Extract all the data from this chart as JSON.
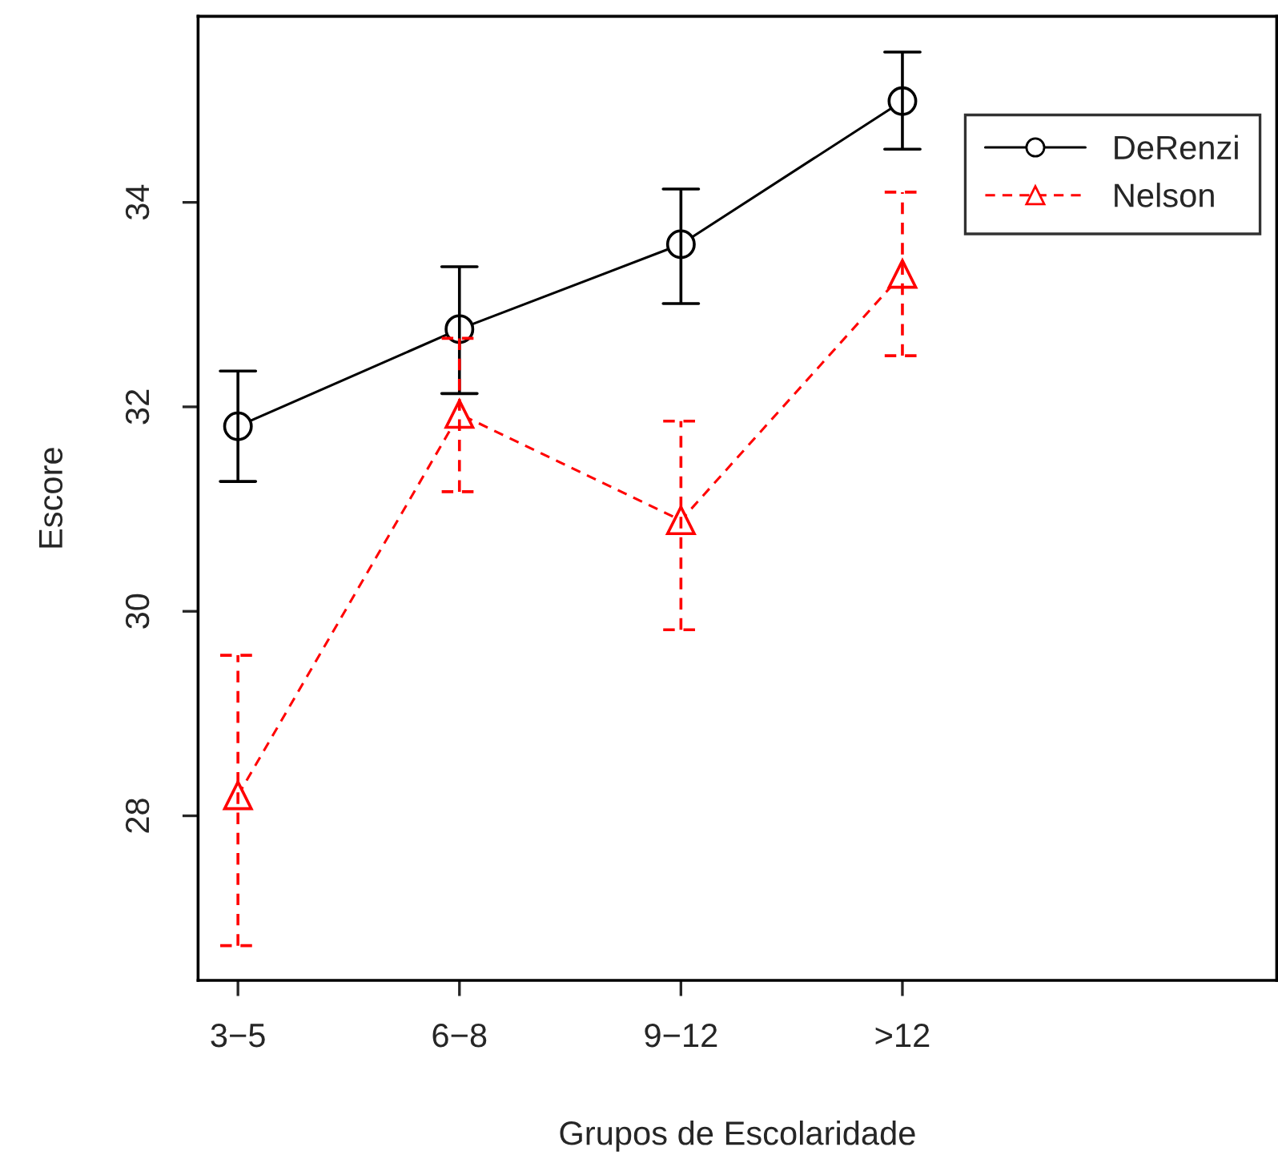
{
  "chart_data": {
    "type": "line",
    "xlabel": "Grupos de Escolaridade",
    "ylabel": "Escore",
    "categories": [
      "3−5",
      "6−8",
      "9−12",
      ">12"
    ],
    "ylim": [
      26.39,
      35.82
    ],
    "yticks": [
      28,
      30,
      32,
      34
    ],
    "grid": false,
    "legend": "top right",
    "series": [
      {
        "name": "DeRenzi",
        "color": "#000000",
        "marker": "circle",
        "line_style": "solid",
        "values": [
          31.81,
          32.76,
          33.59,
          34.99
        ],
        "errors": [
          [
            31.27,
            32.35
          ],
          [
            32.13,
            33.37
          ],
          [
            33.01,
            34.13
          ],
          [
            34.52,
            35.47
          ]
        ]
      },
      {
        "name": "Nelson",
        "color": "#ff0000",
        "marker": "triangle",
        "line_style": "dashed",
        "values": [
          28.2,
          31.93,
          30.89,
          33.3
        ],
        "errors": [
          [
            26.73,
            29.57
          ],
          [
            31.17,
            32.67
          ],
          [
            29.82,
            31.86
          ],
          [
            32.5,
            34.1
          ]
        ]
      }
    ]
  }
}
